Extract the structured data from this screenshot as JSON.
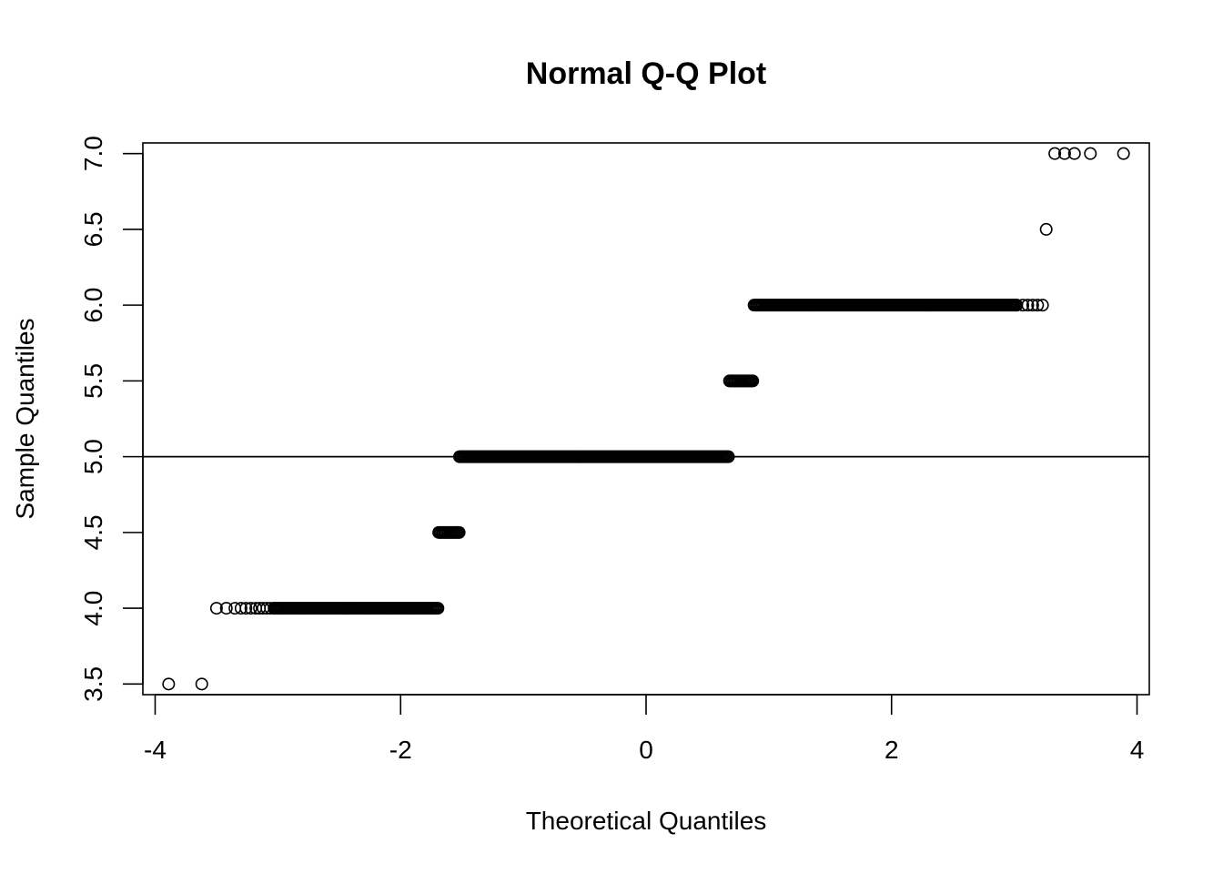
{
  "chart_data": {
    "type": "scatter",
    "title": "Normal Q-Q Plot",
    "xlabel": "Theoretical Quantiles",
    "ylabel": "Sample Quantiles",
    "xlim": [
      -4.1,
      4.1
    ],
    "ylim": [
      3.43,
      7.07
    ],
    "x_ticks": [
      -4,
      -2,
      0,
      2,
      4
    ],
    "x_tick_labels": [
      "-4",
      "-2",
      "0",
      "2",
      "4"
    ],
    "y_ticks": [
      3.5,
      4.0,
      4.5,
      5.0,
      5.5,
      6.0,
      6.5,
      7.0
    ],
    "y_tick_labels": [
      "3.5",
      "4.0",
      "4.5",
      "5.0",
      "5.5",
      "6.0",
      "6.5",
      "7.0"
    ],
    "grid": false,
    "reference_line": {
      "y": 5.0
    },
    "groups": [
      {
        "y": 3.5,
        "points": [
          -3.89,
          -3.62
        ]
      },
      {
        "y": 4.0,
        "points": [
          -3.5,
          -3.42,
          -3.35,
          -3.3,
          -3.26,
          -3.22,
          -3.18,
          -3.15,
          -3.12,
          -3.09,
          -3.06,
          -3.03
        ],
        "dense_range": [
          -3.03,
          -1.69
        ]
      },
      {
        "y": 4.5,
        "dense_range": [
          -1.69,
          -1.52
        ]
      },
      {
        "y": 5.0,
        "dense_range": [
          -1.52,
          0.68
        ]
      },
      {
        "y": 5.5,
        "dense_range": [
          0.68,
          0.88
        ]
      },
      {
        "y": 6.0,
        "dense_range": [
          0.88,
          3.02
        ],
        "points": [
          3.02,
          3.07,
          3.11,
          3.15,
          3.19,
          3.23
        ]
      },
      {
        "y": 6.5,
        "points": [
          3.26
        ]
      },
      {
        "y": 7.0,
        "points": [
          3.33,
          3.41,
          3.49,
          3.62,
          3.89
        ]
      }
    ]
  }
}
